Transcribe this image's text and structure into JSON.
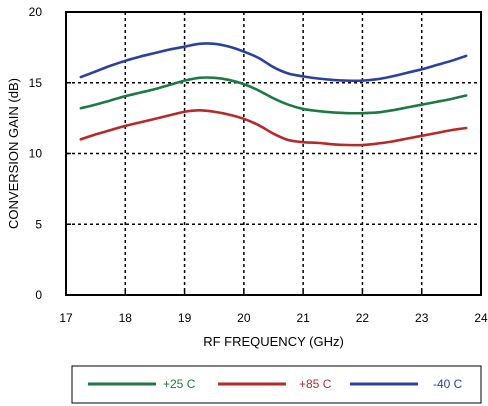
{
  "chart_data": {
    "type": "line",
    "title": "",
    "xlabel": "RF FREQUENCY (GHz)",
    "ylabel": "CONVERSION GAIN (dB)",
    "xlim": [
      17,
      24
    ],
    "ylim": [
      0,
      20
    ],
    "xticks": [
      17,
      18,
      19,
      20,
      21,
      22,
      23,
      24
    ],
    "yticks": [
      0,
      5,
      10,
      15,
      20
    ],
    "x_tick_labels": [
      "17",
      "18",
      "19",
      "20",
      "21",
      "22",
      "23",
      "24"
    ],
    "y_tick_labels": [
      "0",
      "5",
      "10",
      "15",
      "20"
    ],
    "grid": "dotted",
    "legend_position": "bottom",
    "series": [
      {
        "name": "+25 C",
        "color": "#1e7a44",
        "x": [
          17.25,
          17.5,
          17.75,
          18.0,
          18.25,
          18.5,
          18.75,
          19.0,
          19.25,
          19.5,
          19.75,
          20.0,
          20.25,
          20.5,
          20.75,
          21.0,
          21.25,
          21.5,
          21.75,
          22.0,
          22.25,
          22.5,
          22.75,
          23.0,
          23.25,
          23.5,
          23.75
        ],
        "values": [
          13.2,
          13.45,
          13.75,
          14.05,
          14.3,
          14.55,
          14.85,
          15.15,
          15.35,
          15.35,
          15.2,
          14.9,
          14.45,
          13.9,
          13.45,
          13.15,
          13.0,
          12.9,
          12.85,
          12.85,
          12.9,
          13.05,
          13.25,
          13.45,
          13.65,
          13.85,
          14.1
        ]
      },
      {
        "name": "+85 C",
        "color": "#b52a2a",
        "x": [
          17.25,
          17.5,
          17.75,
          18.0,
          18.25,
          18.5,
          18.75,
          19.0,
          19.25,
          19.5,
          19.75,
          20.0,
          20.25,
          20.5,
          20.75,
          21.0,
          21.25,
          21.5,
          21.75,
          22.0,
          22.25,
          22.5,
          22.75,
          23.0,
          23.25,
          23.5,
          23.75
        ],
        "values": [
          11.0,
          11.35,
          11.65,
          11.95,
          12.2,
          12.45,
          12.7,
          12.95,
          13.05,
          12.95,
          12.75,
          12.45,
          12.0,
          11.4,
          10.95,
          10.8,
          10.75,
          10.65,
          10.6,
          10.6,
          10.7,
          10.85,
          11.05,
          11.25,
          11.45,
          11.65,
          11.8
        ]
      },
      {
        "name": "-40 C",
        "color": "#2c40a0",
        "x": [
          17.25,
          17.5,
          17.75,
          18.0,
          18.25,
          18.5,
          18.75,
          19.0,
          19.25,
          19.5,
          19.75,
          20.0,
          20.25,
          20.5,
          20.75,
          21.0,
          21.25,
          21.5,
          21.75,
          22.0,
          22.25,
          22.5,
          22.75,
          23.0,
          23.25,
          23.5,
          23.75
        ],
        "values": [
          15.4,
          15.8,
          16.2,
          16.55,
          16.85,
          17.1,
          17.35,
          17.55,
          17.75,
          17.75,
          17.55,
          17.2,
          16.75,
          16.1,
          15.65,
          15.45,
          15.3,
          15.2,
          15.15,
          15.15,
          15.25,
          15.45,
          15.7,
          15.95,
          16.25,
          16.55,
          16.9
        ]
      }
    ]
  }
}
